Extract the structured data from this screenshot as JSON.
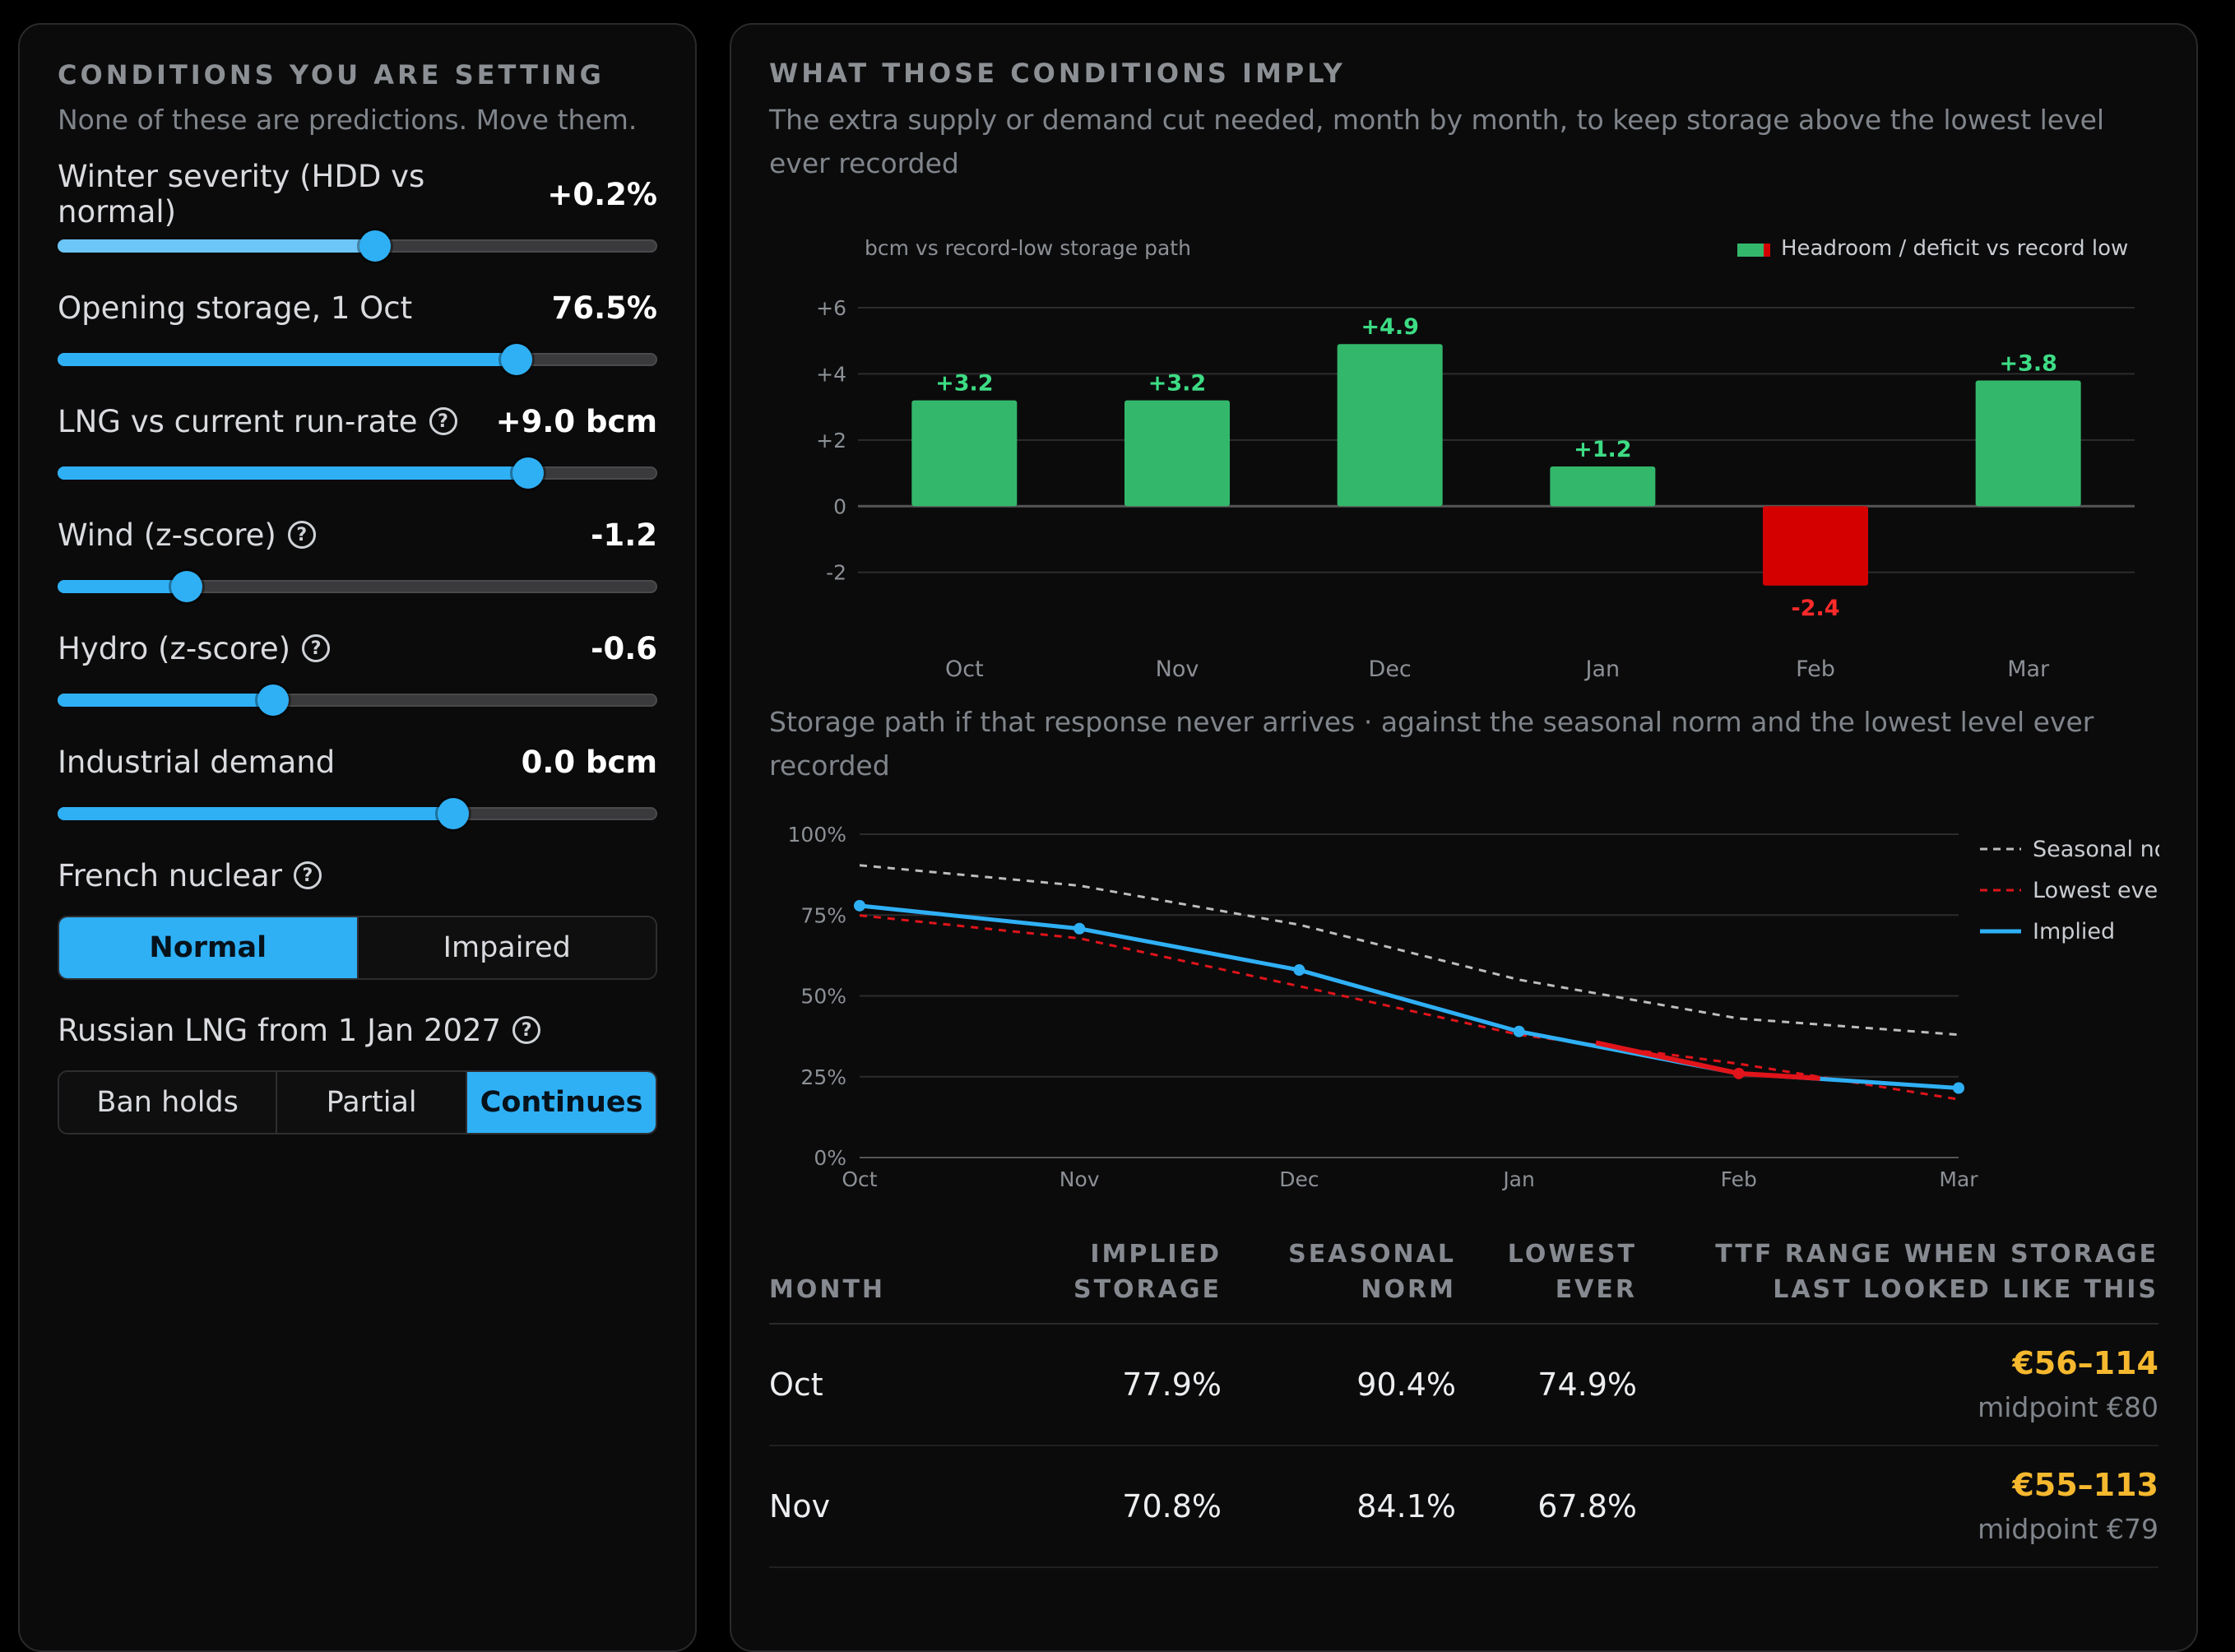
{
  "left": {
    "eyebrow": "CONDITIONS YOU ARE SETTING",
    "subtitle": "None of these are predictions. Move them.",
    "sliders": [
      {
        "label": "Winter severity (HDD vs normal)",
        "value": "+0.2%",
        "help": false,
        "level": 0.53
      },
      {
        "label": "Opening storage, 1 Oct",
        "value": "76.5%",
        "help": false,
        "level": 0.765
      },
      {
        "label": "LNG vs current run-rate",
        "value": "+9.0 bcm",
        "help": true,
        "level": 0.785
      },
      {
        "label": "Wind (z-score)",
        "value": "-1.2",
        "help": true,
        "level": 0.215
      },
      {
        "label": "Hydro (z-score)",
        "value": "-0.6",
        "help": true,
        "level": 0.36
      },
      {
        "label": "Industrial demand",
        "value": "0.0 bcm",
        "help": false,
        "level": 0.66
      }
    ],
    "nuclear": {
      "label": "French nuclear",
      "options": [
        "Normal",
        "Impaired"
      ],
      "selected": 0
    },
    "russian": {
      "label": "Russian LNG from 1 Jan 2027",
      "options": [
        "Ban holds",
        "Partial",
        "Continues"
      ],
      "selected": 2
    },
    "help_glyph": "?"
  },
  "right": {
    "eyebrow": "WHAT THOSE CONDITIONS IMPLY",
    "subtitle": "The extra supply or demand cut needed, month by month, to keep storage above the lowest level ever recorded",
    "bar_chart_caption": "bcm vs record-low storage path",
    "bar_legend": "Headroom / deficit vs record low",
    "line_chart_caption": "Storage path if that response never arrives · against the seasonal norm and the lowest level ever recorded",
    "line_legend": [
      "Seasonal norm",
      "Lowest ever",
      "Implied"
    ],
    "table": {
      "headers": [
        "MONTH",
        "IMPLIED STORAGE",
        "SEASONAL NORM",
        "LOWEST EVER",
        "TTF RANGE WHEN STORAGE LAST LOOKED LIKE THIS"
      ],
      "rows": [
        {
          "month": "Oct",
          "implied": "77.9%",
          "norm": "90.4%",
          "lowest": "74.9%",
          "range": "€56–114",
          "mid": "midpoint €80"
        },
        {
          "month": "Nov",
          "implied": "70.8%",
          "norm": "84.1%",
          "lowest": "67.8%",
          "range": "€55–113",
          "mid": "midpoint €79"
        }
      ]
    }
  },
  "colors": {
    "accent": "#2fb0f5",
    "positive": "#33b86b",
    "negative": "#d40000",
    "amber": "#f5b82e"
  },
  "chart_data": [
    {
      "type": "bar",
      "categories": [
        "Oct",
        "Nov",
        "Dec",
        "Jan",
        "Feb",
        "Mar"
      ],
      "values": [
        3.2,
        3.2,
        4.9,
        1.2,
        -2.4,
        3.8
      ],
      "labels": [
        "+3.2",
        "+3.2",
        "+4.9",
        "+1.2",
        "-2.4",
        "+3.8"
      ],
      "ylabel": "bcm vs record-low storage path",
      "yticks": [
        "+6",
        "+4",
        "+2",
        "0",
        "-2"
      ],
      "ylim": [
        -3.5,
        6
      ],
      "series": [
        {
          "name": "Headroom / deficit vs record low",
          "values": [
            3.2,
            3.2,
            4.9,
            1.2,
            -2.4,
            3.8
          ]
        }
      ],
      "legend": "top-right",
      "grid": true
    },
    {
      "type": "line",
      "x": [
        "Oct",
        "Nov",
        "Dec",
        "Jan",
        "Feb",
        "Mar"
      ],
      "yticks": [
        "100%",
        "75%",
        "50%",
        "25%",
        "0%"
      ],
      "ylim": [
        0,
        100
      ],
      "series": [
        {
          "name": "Seasonal norm",
          "values": [
            90.4,
            84.1,
            72,
            55,
            43,
            38
          ],
          "style": "dashed",
          "color": "#bdbdbd"
        },
        {
          "name": "Lowest ever",
          "values": [
            74.9,
            67.8,
            53,
            38,
            29,
            18
          ],
          "style": "dashed",
          "color": "#e0141a"
        },
        {
          "name": "Implied",
          "values": [
            77.9,
            70.8,
            58,
            39,
            26,
            21.5
          ],
          "style": "solid",
          "color": "#2fb0f5"
        }
      ],
      "legend": "right",
      "grid": true
    }
  ]
}
